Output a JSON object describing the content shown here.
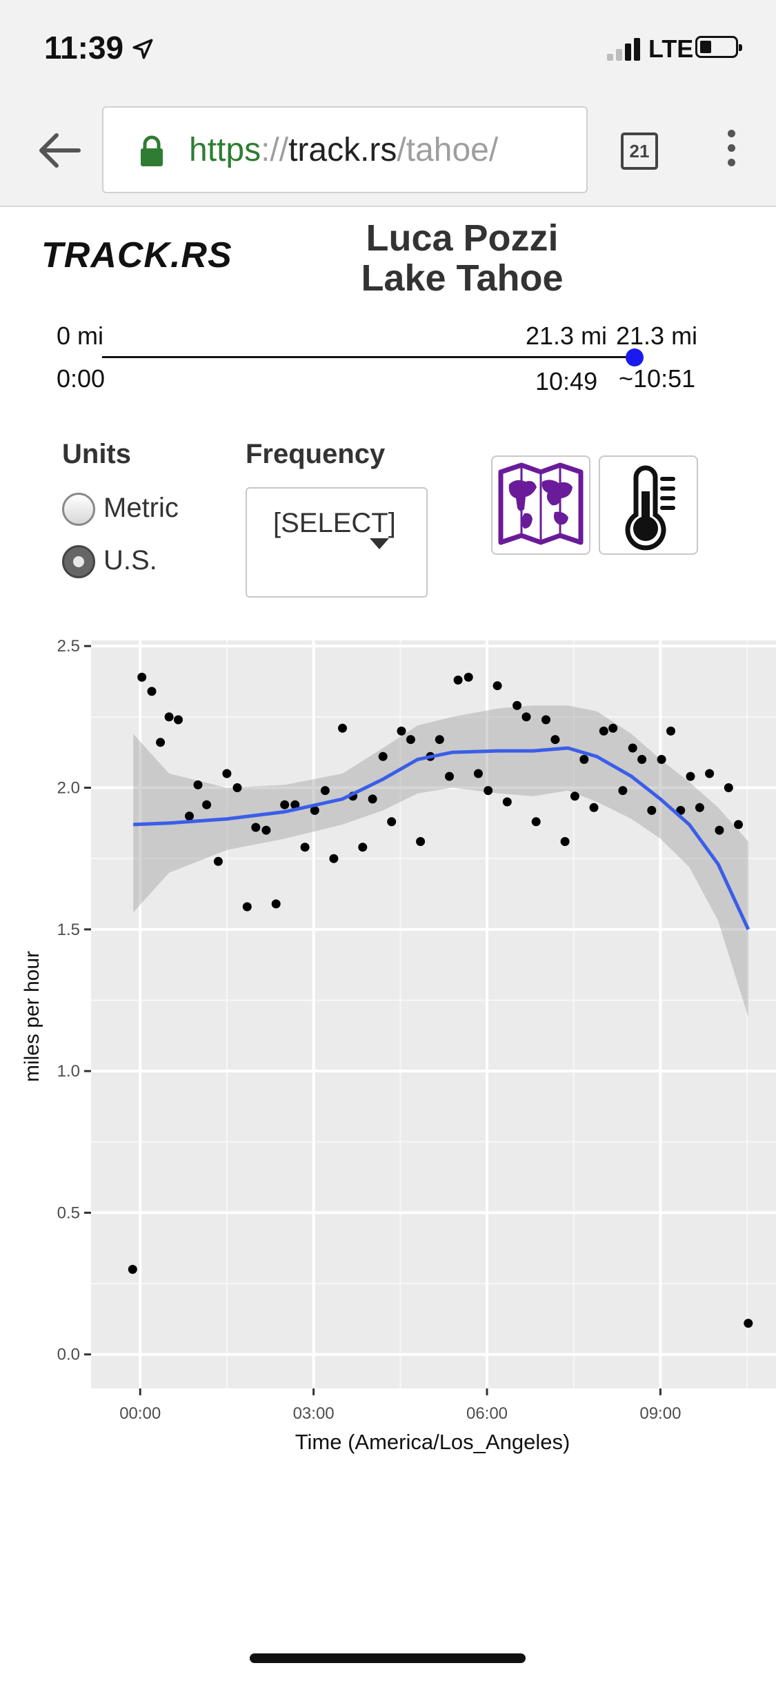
{
  "status": {
    "time": "11:39",
    "network": "LTE"
  },
  "browser": {
    "url_scheme": "https",
    "url_sep": "://",
    "url_host": "track.rs",
    "url_path": "/tahoe/",
    "tab_count": "21"
  },
  "header": {
    "logo": "TRACK.RS",
    "title_line1": "Luca Pozzi",
    "title_line2": "Lake Tahoe"
  },
  "progress": {
    "start_distance": "0 mi",
    "current_distance": "21.3 mi",
    "end_distance": "21.3 mi",
    "start_time": "0:00",
    "current_time": "10:49",
    "end_time": "~10:51",
    "fraction": 1.0
  },
  "controls": {
    "units_label": "Units",
    "units_options": [
      "Metric",
      "U.S."
    ],
    "units_selected": "U.S.",
    "frequency_label": "Frequency",
    "frequency_value": "[SELECT]",
    "icon_buttons": [
      "map-icon",
      "thermometer-icon"
    ]
  },
  "colors": {
    "trend": "#3a5ee8",
    "knob": "#1a1aee",
    "map_icon": "#6a1b9a",
    "panel": "#ebebeb"
  },
  "chart_data": {
    "type": "scatter",
    "title": "",
    "xlabel": "Time (America/Los_Angeles)",
    "ylabel": "miles per hour",
    "x_unit": "hours since midnight",
    "xlim": [
      -0.85,
      11.0
    ],
    "ylim": [
      -0.12,
      2.52
    ],
    "x_ticks": [
      0,
      3,
      6,
      9
    ],
    "x_tick_labels": [
      "00:00",
      "03:00",
      "06:00",
      "09:00"
    ],
    "y_ticks": [
      0.0,
      0.5,
      1.0,
      1.5,
      2.0,
      2.5
    ],
    "y_tick_labels": [
      "0.0",
      "0.5",
      "1.0",
      "1.5",
      "2.0",
      "2.5"
    ],
    "grid": true,
    "points": [
      [
        -0.13,
        0.3
      ],
      [
        0.03,
        2.39
      ],
      [
        0.2,
        2.34
      ],
      [
        0.35,
        2.16
      ],
      [
        0.5,
        2.25
      ],
      [
        0.66,
        2.24
      ],
      [
        0.85,
        1.9
      ],
      [
        1.0,
        2.01
      ],
      [
        1.15,
        1.94
      ],
      [
        1.35,
        1.74
      ],
      [
        1.5,
        2.05
      ],
      [
        1.68,
        2.0
      ],
      [
        1.85,
        1.58
      ],
      [
        2.0,
        1.86
      ],
      [
        2.18,
        1.85
      ],
      [
        2.35,
        1.59
      ],
      [
        2.5,
        1.94
      ],
      [
        2.68,
        1.94
      ],
      [
        2.85,
        1.79
      ],
      [
        3.02,
        1.92
      ],
      [
        3.2,
        1.99
      ],
      [
        3.35,
        1.75
      ],
      [
        3.5,
        2.21
      ],
      [
        3.68,
        1.97
      ],
      [
        3.85,
        1.79
      ],
      [
        4.02,
        1.96
      ],
      [
        4.2,
        2.11
      ],
      [
        4.35,
        1.88
      ],
      [
        4.52,
        2.2
      ],
      [
        4.68,
        2.17
      ],
      [
        4.85,
        1.81
      ],
      [
        5.02,
        2.11
      ],
      [
        5.18,
        2.17
      ],
      [
        5.35,
        2.04
      ],
      [
        5.5,
        2.38
      ],
      [
        5.68,
        2.39
      ],
      [
        5.85,
        2.05
      ],
      [
        6.02,
        1.99
      ],
      [
        6.18,
        2.36
      ],
      [
        6.35,
        1.95
      ],
      [
        6.52,
        2.29
      ],
      [
        6.68,
        2.25
      ],
      [
        6.85,
        1.88
      ],
      [
        7.02,
        2.24
      ],
      [
        7.18,
        2.17
      ],
      [
        7.35,
        1.81
      ],
      [
        7.52,
        1.97
      ],
      [
        7.68,
        2.1
      ],
      [
        7.85,
        1.93
      ],
      [
        8.02,
        2.2
      ],
      [
        8.18,
        2.21
      ],
      [
        8.35,
        1.99
      ],
      [
        8.52,
        2.14
      ],
      [
        8.68,
        2.1
      ],
      [
        8.85,
        1.92
      ],
      [
        9.02,
        2.1
      ],
      [
        9.18,
        2.2
      ],
      [
        9.35,
        1.92
      ],
      [
        9.52,
        2.04
      ],
      [
        9.68,
        1.93
      ],
      [
        9.85,
        2.05
      ],
      [
        10.02,
        1.85
      ],
      [
        10.18,
        2.0
      ],
      [
        10.35,
        1.87
      ],
      [
        10.52,
        0.11
      ]
    ],
    "trend": [
      [
        -0.12,
        1.87
      ],
      [
        0.5,
        1.875
      ],
      [
        1.5,
        1.89
      ],
      [
        2.5,
        1.915
      ],
      [
        3.5,
        1.96
      ],
      [
        4.2,
        2.03
      ],
      [
        4.8,
        2.1
      ],
      [
        5.4,
        2.125
      ],
      [
        6.2,
        2.13
      ],
      [
        6.8,
        2.13
      ],
      [
        7.4,
        2.14
      ],
      [
        7.9,
        2.11
      ],
      [
        8.5,
        2.04
      ],
      [
        9.0,
        1.96
      ],
      [
        9.5,
        1.87
      ],
      [
        10.0,
        1.73
      ],
      [
        10.52,
        1.5
      ]
    ],
    "band_upper": [
      [
        -0.12,
        2.19
      ],
      [
        0.5,
        2.05
      ],
      [
        1.5,
        2.0
      ],
      [
        2.5,
        2.01
      ],
      [
        3.5,
        2.05
      ],
      [
        4.2,
        2.14
      ],
      [
        4.8,
        2.22
      ],
      [
        5.4,
        2.25
      ],
      [
        6.2,
        2.28
      ],
      [
        6.8,
        2.29
      ],
      [
        7.4,
        2.29
      ],
      [
        7.9,
        2.27
      ],
      [
        8.5,
        2.19
      ],
      [
        9.0,
        2.1
      ],
      [
        9.5,
        2.02
      ],
      [
        10.0,
        1.93
      ],
      [
        10.52,
        1.81
      ]
    ],
    "band_lower": [
      [
        -0.12,
        1.56
      ],
      [
        0.5,
        1.7
      ],
      [
        1.5,
        1.78
      ],
      [
        2.5,
        1.82
      ],
      [
        3.5,
        1.87
      ],
      [
        4.2,
        1.92
      ],
      [
        4.8,
        1.98
      ],
      [
        5.4,
        2.0
      ],
      [
        6.2,
        1.98
      ],
      [
        6.8,
        1.97
      ],
      [
        7.4,
        1.99
      ],
      [
        7.9,
        1.95
      ],
      [
        8.5,
        1.89
      ],
      [
        9.0,
        1.82
      ],
      [
        9.5,
        1.72
      ],
      [
        10.0,
        1.53
      ],
      [
        10.52,
        1.19
      ]
    ]
  }
}
